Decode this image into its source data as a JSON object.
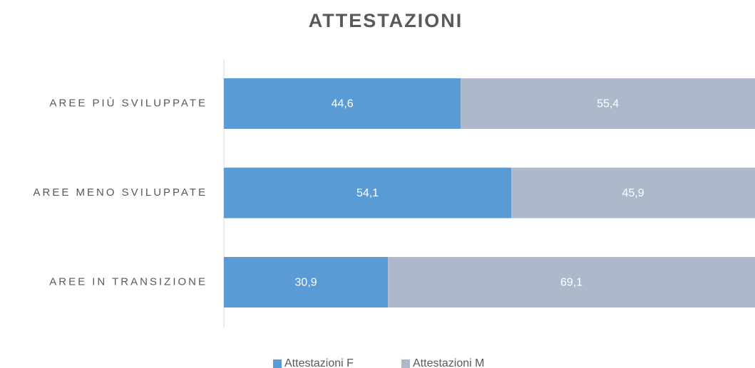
{
  "chart_data": {
    "type": "stacked_bar_horizontal",
    "title": "ATTESTAZIONI",
    "categories": [
      "AREE PIÙ SVILUPPATE",
      "AREE MENO SVILUPPATE",
      "AREE IN TRANSIZIONE"
    ],
    "series": [
      {
        "name": "Attestazioni F",
        "color": "#5b9bd5",
        "values": [
          44.6,
          54.1,
          30.9
        ],
        "value_labels": [
          "44,6",
          "54,1",
          "30,9"
        ]
      },
      {
        "name": "Attestazioni M",
        "color": "#adb9ca",
        "values": [
          55.4,
          45.9,
          69.1
        ],
        "value_labels": [
          "55,4",
          "45,9",
          "69,1"
        ]
      }
    ],
    "xlim": [
      0,
      100
    ],
    "legend": "bottom"
  }
}
